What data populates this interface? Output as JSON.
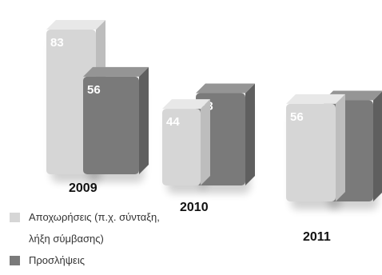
{
  "chart_data": {
    "type": "bar",
    "title": "",
    "xlabel": "",
    "ylabel": "",
    "categories": [
      "2009",
      "2010",
      "2011"
    ],
    "series": [
      {
        "name": "Αποχωρήσεις (π.χ. σύνταξη, λήξη σύμβασης)",
        "values": [
          83,
          44,
          56
        ]
      },
      {
        "name": "Προσλήψεις",
        "values": [
          56,
          53,
          58
        ]
      }
    ],
    "ylim": [
      0,
      90
    ],
    "grid": false,
    "legend_position": "bottom-left",
    "colors": {
      "series1": "#d6d6d6",
      "series2": "#7a7a7a",
      "series1_top": "#e8e8e8",
      "series2_top": "#959595",
      "series1_side": "#bdbdbd",
      "series2_side": "#5f5f5f"
    }
  },
  "legend": {
    "items": [
      {
        "lines": [
          "Αποχωρήσεις (π.χ. σύνταξη,",
          "λήξη σύμβασης)"
        ]
      },
      {
        "lines": [
          "Προσλήψεις"
        ]
      }
    ]
  }
}
